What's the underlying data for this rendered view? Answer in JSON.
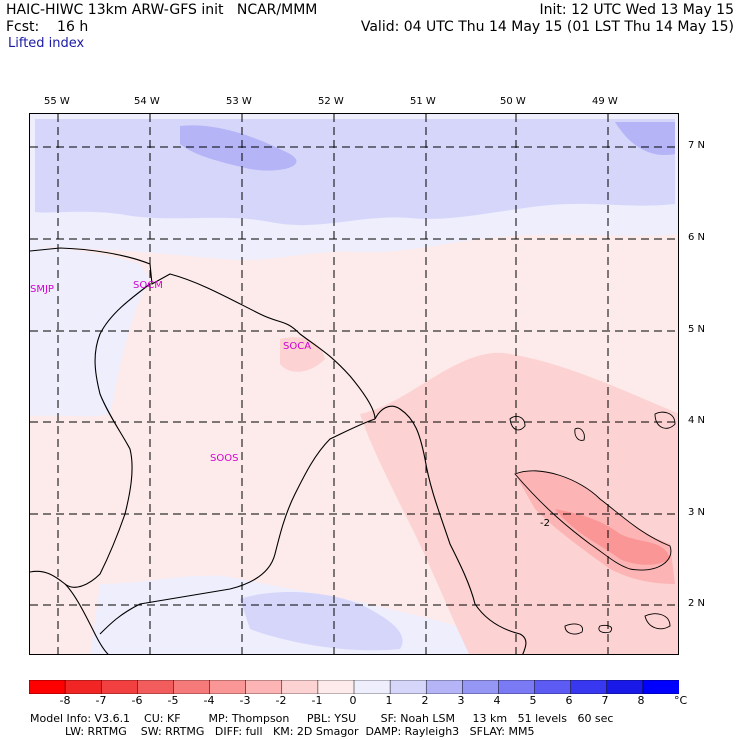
{
  "header": {
    "line1_left": "HAIC-HIWC 13km ARW-GFS init   NCAR/MMM",
    "line1_right": "Init: 12 UTC Wed 13 May 15",
    "line2_left": "Fcst:    16 h",
    "line2_right": "Valid: 04 UTC Thu 14 May 15 (01 LST Thu 14 May 15)",
    "field_name": "Lifted index"
  },
  "map": {
    "lon_labels": [
      "55 W",
      "54 W",
      "53 W",
      "52 W",
      "51 W",
      "50 W",
      "49 W"
    ],
    "lat_labels": [
      "7 N",
      "6 N",
      "5 N",
      "4 N",
      "3 N",
      "2 N"
    ],
    "stations": [
      "SMJP",
      "SOCM",
      "SOCA",
      "SOOS"
    ],
    "contour_label": "-2"
  },
  "colorbar": {
    "labels": [
      "-8",
      "-7",
      "-6",
      "-5",
      "-4",
      "-3",
      "-2",
      "-1",
      "0",
      "1",
      "2",
      "3",
      "4",
      "5",
      "6",
      "7",
      "8"
    ],
    "unit": "°C",
    "colors": [
      "#ff0000",
      "#f22525",
      "#f24040",
      "#f25c5c",
      "#f77a7a",
      "#fa9696",
      "#fcb4b4",
      "#fdd2d2",
      "#fdeaea",
      "#eeeefd",
      "#d6d6fb",
      "#b4b4f7",
      "#9696f5",
      "#7a7af5",
      "#5c5cf5",
      "#3838f0",
      "#1a1ae8",
      "#0000ff"
    ]
  },
  "footer": {
    "line1": "Model Info: V3.6.1    CU: KF        MP: Thompson     PBL: YSU       SF: Noah LSM     13 km   51 levels   60 sec",
    "line2": "          LW: RRTMG    SW: RRTMG   DIFF: full   KM: 2D Smagor  DAMP: Rayleigh3   SFLAY: MM5"
  }
}
